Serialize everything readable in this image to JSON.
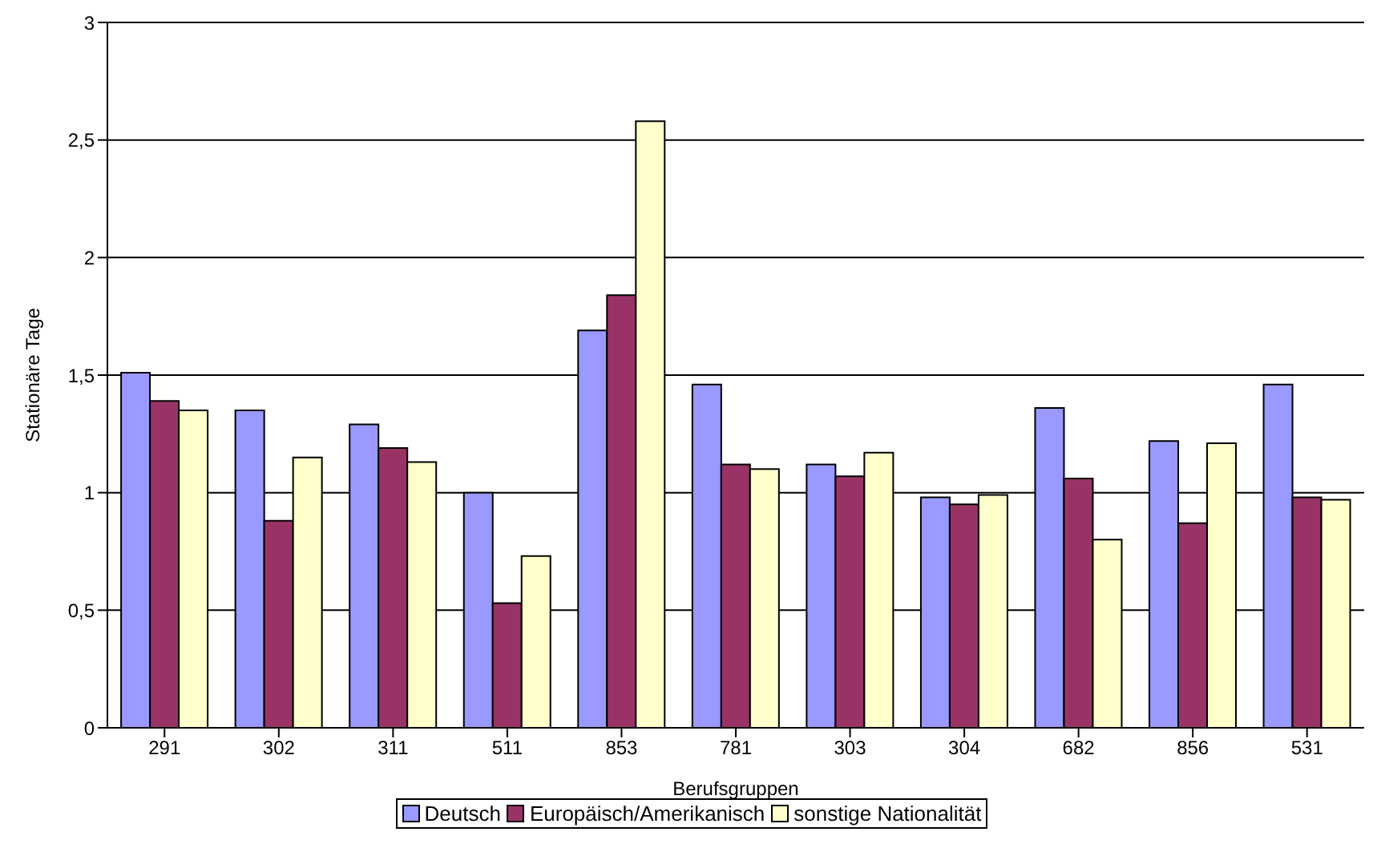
{
  "chart_data": {
    "type": "bar",
    "xlabel": "Berufsgruppen",
    "ylabel": "Stationäre Tage",
    "categories": [
      "291",
      "302",
      "311",
      "511",
      "853",
      "781",
      "303",
      "304",
      "682",
      "856",
      "531"
    ],
    "series": [
      {
        "name": "Deutsch",
        "color": "#9999ff",
        "values": [
          1.51,
          1.35,
          1.29,
          1.0,
          1.69,
          1.46,
          1.12,
          0.98,
          1.36,
          1.22,
          1.46
        ]
      },
      {
        "name": "Europäisch/Amerikanisch",
        "color": "#993366",
        "values": [
          1.39,
          0.88,
          1.19,
          0.53,
          1.84,
          1.12,
          1.07,
          0.95,
          1.06,
          0.87,
          0.98
        ]
      },
      {
        "name": "sonstige Nationalität",
        "color": "#ffffcc",
        "values": [
          1.35,
          1.15,
          1.13,
          0.73,
          2.58,
          1.1,
          1.17,
          0.99,
          0.8,
          1.21,
          0.97
        ]
      }
    ],
    "ylim": [
      0,
      3
    ],
    "yticks": [
      0,
      {
        "value": 0.5,
        "label": "0,5"
      },
      1,
      {
        "value": 1.5,
        "label": "1,5"
      },
      2,
      {
        "value": 2.5,
        "label": "2,5"
      },
      3
    ],
    "grid": "y",
    "legend": "bottom"
  }
}
